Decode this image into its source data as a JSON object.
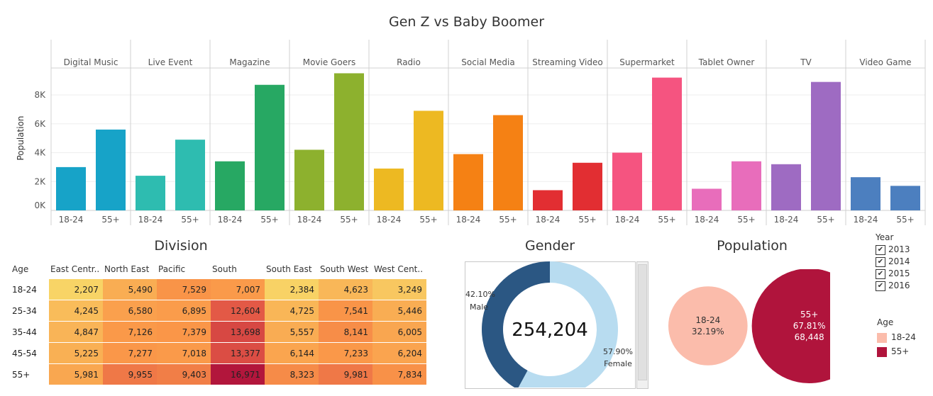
{
  "chart_data": [
    {
      "type": "bar",
      "title": "Gen Z vs Baby Boomer",
      "ylabel": "Population",
      "ylim": [
        0,
        10000
      ],
      "yticks": [
        {
          "value": 0,
          "label": "0K"
        },
        {
          "value": 2000,
          "label": "2K"
        },
        {
          "value": 4000,
          "label": "4K"
        },
        {
          "value": 6000,
          "label": "6K"
        },
        {
          "value": 8000,
          "label": "8K"
        }
      ],
      "panels": [
        {
          "name": "Digital Music",
          "color": "#17a3c8",
          "values": {
            "18-24": 3000,
            "55+": 5600
          }
        },
        {
          "name": "Live Event",
          "color": "#2ebcb0",
          "values": {
            "18-24": 2400,
            "55+": 4900
          }
        },
        {
          "name": "Magazine",
          "color": "#27a863",
          "values": {
            "18-24": 3400,
            "55+": 8700
          }
        },
        {
          "name": "Movie Goers",
          "color": "#8db12e",
          "values": {
            "18-24": 4200,
            "55+": 9500
          }
        },
        {
          "name": "Radio",
          "color": "#edb922",
          "values": {
            "18-24": 2900,
            "55+": 6900
          }
        },
        {
          "name": "Social Media",
          "color": "#f58114",
          "values": {
            "18-24": 3900,
            "55+": 6600
          }
        },
        {
          "name": "Streaming Video",
          "color": "#e22e32",
          "values": {
            "18-24": 1400,
            "55+": 3300
          }
        },
        {
          "name": "Supermarket",
          "color": "#f55480",
          "values": {
            "18-24": 4000,
            "55+": 9200
          }
        },
        {
          "name": "Tablet Owner",
          "color": "#e86dbb",
          "values": {
            "18-24": 1500,
            "55+": 3400
          }
        },
        {
          "name": "TV",
          "color": "#9e6bc2",
          "values": {
            "18-24": 3200,
            "55+": 8900
          }
        },
        {
          "name": "Video Game",
          "color": "#4c7fbf",
          "values": {
            "18-24": 2300,
            "55+": 1700
          }
        }
      ],
      "categories": [
        "18-24",
        "55+"
      ]
    },
    {
      "type": "heatmap",
      "title": "Division",
      "corner_label": "Age",
      "columns": [
        "East Centr..",
        "North East",
        "Pacific",
        "South",
        "South East",
        "South West",
        "West Cent.."
      ],
      "rows": [
        {
          "label": "18-24",
          "values": [
            2207,
            5490,
            7529,
            7007,
            2384,
            4623,
            3249
          ],
          "text": [
            "2,207",
            "5,490",
            "7,529",
            "7,007",
            "2,384",
            "4,623",
            "3,249"
          ]
        },
        {
          "label": "25-34",
          "values": [
            4245,
            6580,
            6895,
            12604,
            4725,
            7541,
            5446
          ],
          "text": [
            "4,245",
            "6,580",
            "6,895",
            "12,604",
            "4,725",
            "7,541",
            "5,446"
          ]
        },
        {
          "label": "35-44",
          "values": [
            4847,
            7126,
            7379,
            13698,
            5557,
            8141,
            6005
          ],
          "text": [
            "4,847",
            "7,126",
            "7,379",
            "13,698",
            "5,557",
            "8,141",
            "6,005"
          ]
        },
        {
          "label": "45-54",
          "values": [
            5225,
            7277,
            7018,
            13377,
            6144,
            7233,
            6204
          ],
          "text": [
            "5,225",
            "7,277",
            "7,018",
            "13,377",
            "6,144",
            "7,233",
            "6,204"
          ]
        },
        {
          "label": "55+",
          "values": [
            5981,
            9955,
            9403,
            16971,
            8323,
            9981,
            7834
          ],
          "text": [
            "5,981",
            "9,955",
            "9,403",
            "16,971",
            "8,323",
            "9,981",
            "7,834"
          ]
        }
      ]
    },
    {
      "type": "pie",
      "title": "Gender",
      "center_label": "254,204",
      "slices": [
        {
          "name": "Male",
          "value": 42.1,
          "label_pct": "42.10%",
          "label_name": "Male",
          "color": "#2b5783"
        },
        {
          "name": "Female",
          "value": 57.9,
          "label_pct": "57.90%",
          "label_name": "Female",
          "color": "#b8dcf0"
        }
      ]
    },
    {
      "type": "bubble",
      "title": "Population",
      "bubbles": [
        {
          "name": "18-24",
          "value": 32.19,
          "pct_label": "32.19%",
          "count_label": "",
          "color": "#fbbcab"
        },
        {
          "name": "55+",
          "value": 67.81,
          "pct_label": "67.81%",
          "count_label": "68,448",
          "color": "#b0143c"
        }
      ]
    }
  ],
  "filters": {
    "year": {
      "title": "Year",
      "items": [
        {
          "label": "2013",
          "checked": true
        },
        {
          "label": "2014",
          "checked": true
        },
        {
          "label": "2015",
          "checked": true
        },
        {
          "label": "2016",
          "checked": true
        }
      ]
    },
    "age": {
      "title": "Age",
      "items": [
        {
          "label": "18-24",
          "color": "#fbbcab"
        },
        {
          "label": "55+",
          "color": "#b0143c"
        }
      ]
    }
  }
}
